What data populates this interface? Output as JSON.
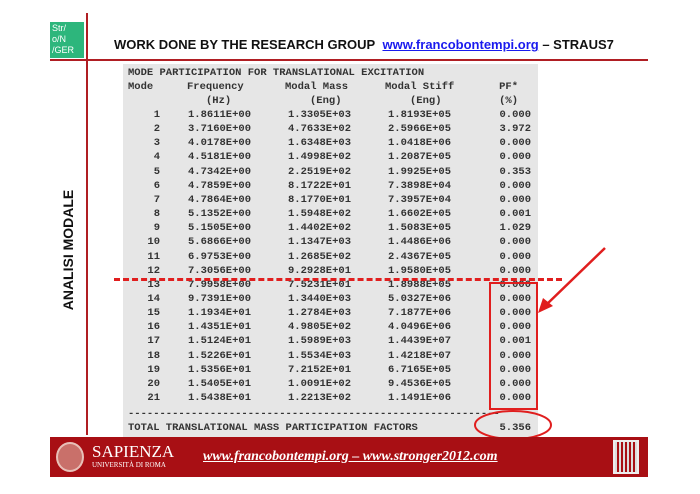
{
  "header": {
    "logo_lines": [
      "Str/",
      "o/N",
      "/GER"
    ],
    "title": "WORK DONE BY THE RESEARCH GROUP",
    "link": "www.francobontempi.org",
    "suffix": "– STRAUS7"
  },
  "side_label": "ANALISI MODALE",
  "table": {
    "title": "MODE PARTICIPATION FOR TRANSLATIONAL EXCITATION",
    "headers": [
      "Mode",
      "Frequency",
      "Modal Mass",
      "Modal Stiff",
      "PF*"
    ],
    "units": [
      "",
      "(Hz)",
      "(Eng)",
      "(Eng)",
      "(%)"
    ],
    "rows": [
      [
        "1",
        "1.8611E+00",
        "1.3305E+03",
        "1.8193E+05",
        "0.000"
      ],
      [
        "2",
        "3.7160E+00",
        "4.7633E+02",
        "2.5966E+05",
        "3.972"
      ],
      [
        "3",
        "4.0178E+00",
        "1.6348E+03",
        "1.0418E+06",
        "0.000"
      ],
      [
        "4",
        "4.5181E+00",
        "1.4998E+02",
        "1.2087E+05",
        "0.000"
      ],
      [
        "5",
        "4.7342E+00",
        "2.2519E+02",
        "1.9925E+05",
        "0.353"
      ],
      [
        "6",
        "4.7859E+00",
        "8.1722E+01",
        "7.3898E+04",
        "0.000"
      ],
      [
        "7",
        "4.7864E+00",
        "8.1770E+01",
        "7.3957E+04",
        "0.000"
      ],
      [
        "8",
        "5.1352E+00",
        "1.5948E+02",
        "1.6602E+05",
        "0.001"
      ],
      [
        "9",
        "5.1505E+00",
        "1.4402E+02",
        "1.5083E+05",
        "1.029"
      ],
      [
        "10",
        "5.6866E+00",
        "1.1347E+03",
        "1.4486E+06",
        "0.000"
      ],
      [
        "11",
        "6.9753E+00",
        "1.2685E+02",
        "2.4367E+05",
        "0.000"
      ],
      [
        "12",
        "7.3056E+00",
        "9.2928E+01",
        "1.9580E+05",
        "0.000"
      ],
      [
        "13",
        "7.9958E+00",
        "7.5231E+01",
        "1.8988E+05",
        "0.000"
      ],
      [
        "14",
        "9.7391E+00",
        "1.3440E+03",
        "5.0327E+06",
        "0.000"
      ],
      [
        "15",
        "1.1934E+01",
        "1.2784E+03",
        "7.1877E+06",
        "0.000"
      ],
      [
        "16",
        "1.4351E+01",
        "4.9805E+02",
        "4.0496E+06",
        "0.000"
      ],
      [
        "17",
        "1.5124E+01",
        "1.5989E+03",
        "1.4439E+07",
        "0.001"
      ],
      [
        "18",
        "1.5226E+01",
        "1.5534E+03",
        "1.4218E+07",
        "0.000"
      ],
      [
        "19",
        "1.5356E+01",
        "7.2152E+01",
        "6.7165E+05",
        "0.000"
      ],
      [
        "20",
        "1.5405E+01",
        "1.0091E+02",
        "9.4536E+05",
        "0.000"
      ],
      [
        "21",
        "1.5438E+01",
        "1.2213E+02",
        "1.1491E+06",
        "0.000"
      ]
    ],
    "separator": "-----------------------------------------------------------",
    "total_label": "TOTAL TRANSLATIONAL MASS PARTICIPATION FACTORS",
    "total_value": "5.356"
  },
  "footer": {
    "university": "SAPIENZA",
    "university_sub": "UNIVERSITÀ DI ROMA",
    "links": "www.francobontempi.org – www.stronger2012.com"
  },
  "colors": {
    "accent": "#b01e23",
    "annotation": "#e01e1e",
    "logo": "#2db67c",
    "footer": "#a80f14"
  }
}
